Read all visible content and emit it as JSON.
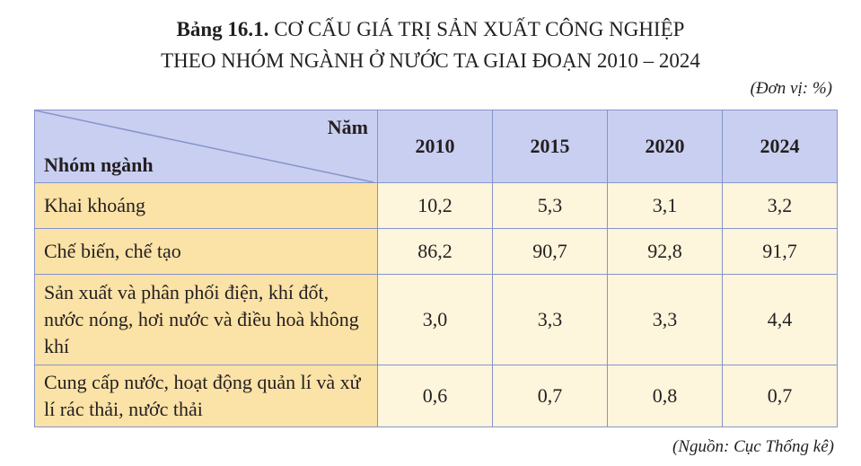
{
  "title": {
    "label": "Bảng 16.1.",
    "line1": "CƠ CẤU GIÁ TRỊ SẢN XUẤT CÔNG NGHIỆP",
    "line2": "THEO NHÓM NGÀNH Ở NƯỚC TA GIAI ĐOẠN 2010 – 2024"
  },
  "unit": "(Đơn vị: %)",
  "table": {
    "corner_top": "Năm",
    "corner_bottom": "Nhóm ngành",
    "columns": [
      "2010",
      "2015",
      "2020",
      "2024"
    ],
    "rows": [
      [
        "Khai khoáng",
        "10,2",
        "5,3",
        "3,1",
        "3,2"
      ],
      [
        "Chế biến, chế tạo",
        "86,2",
        "90,7",
        "92,8",
        "91,7"
      ],
      [
        "Sản xuất và phân phối điện, khí đốt, nước nóng, hơi nước và điều hoà không khí",
        "3,0",
        "3,3",
        "3,3",
        "4,4"
      ],
      [
        "Cung cấp nước, hoạt động quản lí và xử lí rác thải, nước thải",
        "0,6",
        "0,7",
        "0,8",
        "0,7"
      ]
    ]
  },
  "source": "(Nguồn: Cục Thống kê)"
}
